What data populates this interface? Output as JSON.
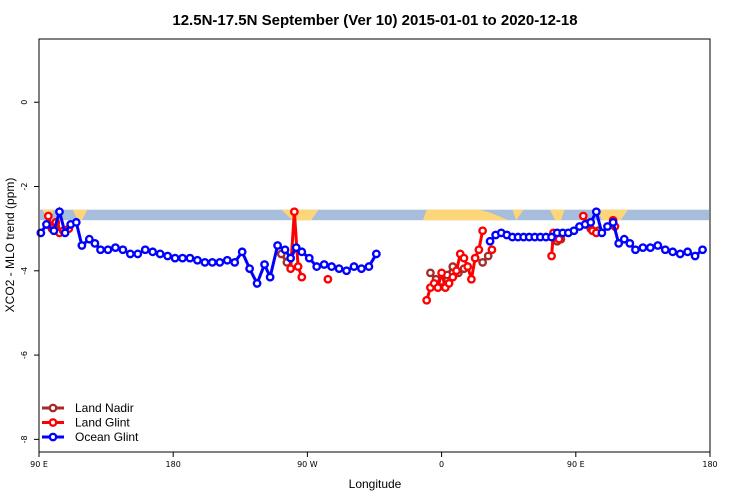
{
  "chart_data": {
    "type": "line",
    "title": "12.5N-17.5N September (Ver 10)   2015-01-01 to 2020-12-18",
    "xlabel": "Longitude",
    "ylabel": "XCO2 - MLO trend (ppm)",
    "xlim": [
      90,
      450
    ],
    "ylim": [
      -8.3,
      1.5
    ],
    "x_ticks": [
      {
        "value": 90,
        "label": "90 E"
      },
      {
        "value": 162,
        "label": "180"
      },
      {
        "value": 234,
        "label": "90 W"
      },
      {
        "value": 306,
        "label": "0"
      },
      {
        "value": 378,
        "label": "90 E"
      },
      {
        "value": 450,
        "label": "180"
      }
    ],
    "y_ticks": [
      {
        "value": 0,
        "label": "0"
      },
      {
        "value": -2,
        "label": "-2"
      },
      {
        "value": -4,
        "label": "-4"
      },
      {
        "value": -6,
        "label": "-6"
      },
      {
        "value": -8,
        "label": "-8"
      }
    ],
    "grid": false,
    "legend_position": "bottom-left",
    "band": {
      "y_top": -2.55,
      "y_bottom": -2.8,
      "color": "#a6bddb"
    },
    "land_fill": {
      "color": "#fdd67a",
      "regions": [
        [
          [
            92,
            -2.55
          ],
          [
            98,
            -2.55
          ],
          [
            96,
            -2.8
          ],
          [
            94,
            -2.8
          ]
        ],
        [
          [
            108,
            -2.55
          ],
          [
            116,
            -2.55
          ],
          [
            113,
            -2.8
          ],
          [
            111,
            -2.8
          ]
        ],
        [
          [
            220,
            -2.55
          ],
          [
            240,
            -2.55
          ],
          [
            236,
            -2.8
          ],
          [
            226,
            -2.8
          ]
        ],
        [
          [
            298,
            -2.55
          ],
          [
            326,
            -2.55
          ],
          [
            332,
            -2.62
          ],
          [
            342,
            -2.8
          ],
          [
            296,
            -2.8
          ]
        ],
        [
          [
            344,
            -2.55
          ],
          [
            350,
            -2.55
          ],
          [
            346,
            -2.8
          ]
        ],
        [
          [
            364,
            -2.55
          ],
          [
            372,
            -2.55
          ],
          [
            370,
            -2.8
          ],
          [
            367,
            -2.8
          ]
        ],
        [
          [
            390,
            -2.55
          ],
          [
            406,
            -2.55
          ],
          [
            402,
            -2.8
          ],
          [
            392,
            -2.8
          ]
        ]
      ]
    },
    "series": [
      {
        "name": "Land Nadir",
        "color": "#a52a2a",
        "segments": [
          [
            [
              95,
              -2.9
            ],
            [
              97,
              -3.0
            ],
            [
              99,
              -2.95
            ]
          ],
          [
            [
              220,
              -3.6
            ],
            [
              223,
              -3.8
            ]
          ],
          [
            [
              300,
              -4.05
            ],
            [
              303,
              -4.2
            ],
            [
              306,
              -4.25
            ],
            [
              309,
              -4.1
            ],
            [
              312,
              -3.9
            ],
            [
              315,
              -4.05
            ],
            [
              318,
              -3.95
            ]
          ],
          [
            [
              328,
              -3.8
            ],
            [
              331,
              -3.65
            ]
          ],
          [
            [
              368,
              -3.3
            ],
            [
              370,
              -3.25
            ]
          ],
          [
            [
              386,
              -3.0
            ],
            [
              390,
              -3.05
            ]
          ]
        ]
      },
      {
        "name": "Land Glint",
        "color": "#ff0000",
        "segments": [
          [
            [
              95,
              -2.7
            ],
            [
              97,
              -3.0
            ],
            [
              99,
              -2.85
            ],
            [
              101,
              -3.1
            ],
            [
              103,
              -3.05
            ],
            [
              106,
              -3.0
            ]
          ],
          [
            [
              225,
              -3.95
            ],
            [
              227,
              -2.6
            ],
            [
              229,
              -3.9
            ],
            [
              231,
              -4.15
            ]
          ],
          [
            [
              245,
              -4.2
            ]
          ],
          [
            [
              298,
              -4.7
            ],
            [
              300,
              -4.4
            ],
            [
              302,
              -4.3
            ],
            [
              304,
              -4.4
            ],
            [
              306,
              -4.05
            ],
            [
              308,
              -4.4
            ],
            [
              310,
              -4.3
            ],
            [
              312,
              -4.15
            ],
            [
              314,
              -4.0
            ],
            [
              316,
              -3.6
            ],
            [
              318,
              -3.7
            ],
            [
              320,
              -3.9
            ],
            [
              322,
              -4.2
            ],
            [
              324,
              -3.7
            ],
            [
              326,
              -3.5
            ],
            [
              328,
              -3.05
            ]
          ],
          [
            [
              333,
              -3.5
            ]
          ],
          [
            [
              365,
              -3.65
            ],
            [
              366,
              -3.1
            ],
            [
              369,
              -3.25
            ]
          ],
          [
            [
              382,
              -2.7
            ],
            [
              385,
              -2.9
            ],
            [
              387,
              -3.05
            ],
            [
              389,
              -3.1
            ]
          ],
          [
            [
              398,
              -2.8
            ],
            [
              399,
              -2.95
            ]
          ]
        ]
      },
      {
        "name": "Ocean Glint",
        "color": "#0000ff",
        "segments": [
          [
            [
              91,
              -3.1
            ],
            [
              94,
              -2.9
            ],
            [
              98,
              -3.05
            ],
            [
              101,
              -2.6
            ],
            [
              104,
              -3.1
            ],
            [
              107,
              -2.9
            ],
            [
              110,
              -2.85
            ],
            [
              113,
              -3.4
            ],
            [
              117,
              -3.25
            ],
            [
              120,
              -3.35
            ],
            [
              123,
              -3.5
            ],
            [
              127,
              -3.5
            ],
            [
              131,
              -3.45
            ],
            [
              135,
              -3.5
            ],
            [
              139,
              -3.6
            ],
            [
              143,
              -3.6
            ],
            [
              147,
              -3.5
            ],
            [
              151,
              -3.55
            ],
            [
              155,
              -3.6
            ],
            [
              159,
              -3.65
            ],
            [
              163,
              -3.7
            ],
            [
              167,
              -3.7
            ],
            [
              171,
              -3.7
            ],
            [
              175,
              -3.75
            ],
            [
              179,
              -3.8
            ],
            [
              183,
              -3.8
            ],
            [
              187,
              -3.8
            ],
            [
              191,
              -3.75
            ],
            [
              195,
              -3.8
            ],
            [
              199,
              -3.55
            ],
            [
              203,
              -3.95
            ],
            [
              207,
              -4.3
            ],
            [
              211,
              -3.85
            ],
            [
              214,
              -4.15
            ],
            [
              218,
              -3.4
            ],
            [
              222,
              -3.5
            ],
            [
              225,
              -3.7
            ],
            [
              228,
              -3.45
            ],
            [
              231,
              -3.55
            ],
            [
              235,
              -3.7
            ],
            [
              239,
              -3.9
            ],
            [
              243,
              -3.85
            ],
            [
              247,
              -3.9
            ],
            [
              251,
              -3.95
            ],
            [
              255,
              -4.0
            ],
            [
              259,
              -3.9
            ],
            [
              263,
              -3.95
            ],
            [
              267,
              -3.9
            ],
            [
              271,
              -3.6
            ]
          ],
          [
            [
              332,
              -3.3
            ],
            [
              335,
              -3.15
            ],
            [
              338,
              -3.1
            ],
            [
              341,
              -3.15
            ],
            [
              344,
              -3.2
            ],
            [
              347,
              -3.2
            ],
            [
              350,
              -3.2
            ],
            [
              353,
              -3.2
            ],
            [
              356,
              -3.2
            ],
            [
              359,
              -3.2
            ],
            [
              362,
              -3.2
            ],
            [
              365,
              -3.2
            ],
            [
              368,
              -3.1
            ],
            [
              371,
              -3.1
            ],
            [
              374,
              -3.1
            ],
            [
              377,
              -3.05
            ],
            [
              380,
              -2.95
            ],
            [
              383,
              -2.9
            ],
            [
              386,
              -2.85
            ],
            [
              389,
              -2.6
            ],
            [
              392,
              -3.1
            ],
            [
              395,
              -2.95
            ],
            [
              398,
              -2.85
            ],
            [
              401,
              -3.35
            ],
            [
              404,
              -3.25
            ],
            [
              407,
              -3.35
            ],
            [
              410,
              -3.5
            ],
            [
              414,
              -3.45
            ],
            [
              418,
              -3.45
            ],
            [
              422,
              -3.4
            ],
            [
              426,
              -3.5
            ],
            [
              430,
              -3.55
            ],
            [
              434,
              -3.6
            ],
            [
              438,
              -3.55
            ],
            [
              442,
              -3.65
            ],
            [
              446,
              -3.5
            ]
          ]
        ]
      }
    ]
  }
}
